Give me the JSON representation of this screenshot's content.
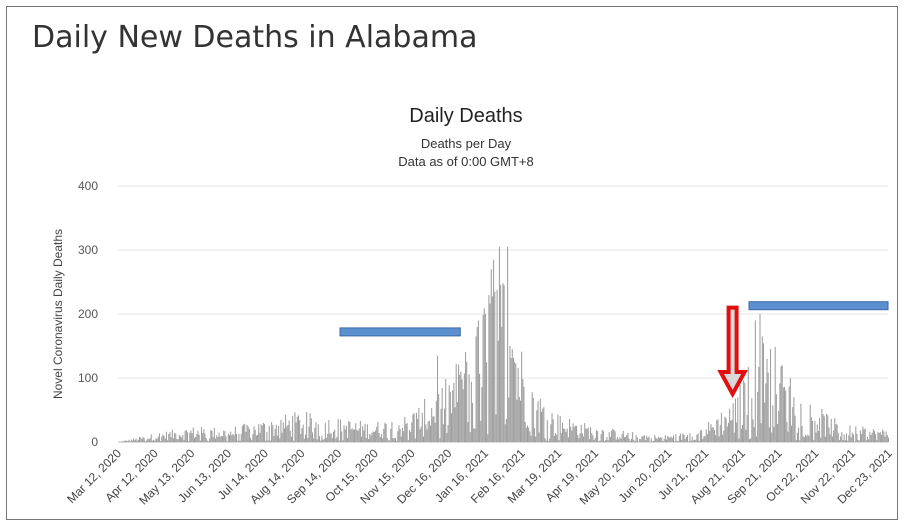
{
  "page": {
    "title": "Daily New Deaths in Alabama"
  },
  "chart_data": {
    "type": "bar",
    "title": "Daily Deaths",
    "subtitle_lines": [
      "Deaths per Day",
      "Data as of 0:00 GMT+8"
    ],
    "xlabel": "",
    "ylabel": "Novel Coronavirus Daily Deaths",
    "ylim": [
      0,
      400
    ],
    "y_ticks": [
      0,
      100,
      200,
      300,
      400
    ],
    "grid": true,
    "x_start": "2020-03-12",
    "x_end": "2021-12-31",
    "x_tick_labels": [
      "Mar 12, 2020",
      "Apr 12, 2020",
      "May 13, 2020",
      "Jun 13, 2020",
      "Jul 14, 2020",
      "Aug 14, 2020",
      "Sep 14, 2020",
      "Oct 15, 2020",
      "Nov 15, 2020",
      "Dec 16, 2020",
      "Jan 16, 2021",
      "Feb 16, 2021",
      "Mar 19, 2021",
      "Apr 19, 2021",
      "May 20, 2021",
      "Jun 20, 2021",
      "Jul 21, 2021",
      "Aug 21, 2021",
      "Sep 21, 2021",
      "Oct 22, 2021",
      "Nov 22, 2021",
      "Dec 23, 2021"
    ],
    "series": [
      {
        "color": "#9e9e9e",
        "shape_points": [
          [
            "2020-03-12",
            0
          ],
          [
            "2020-04-12",
            8
          ],
          [
            "2020-05-13",
            14
          ],
          [
            "2020-06-13",
            13
          ],
          [
            "2020-07-14",
            20
          ],
          [
            "2020-08-14",
            28
          ],
          [
            "2020-09-14",
            22
          ],
          [
            "2020-10-15",
            18
          ],
          [
            "2020-11-15",
            25
          ],
          [
            "2020-12-16",
            55
          ],
          [
            "2021-01-05",
            90
          ],
          [
            "2021-01-16",
            140
          ],
          [
            "2021-02-01",
            185
          ],
          [
            "2021-02-10",
            165
          ],
          [
            "2021-02-16",
            105
          ],
          [
            "2021-03-01",
            55
          ],
          [
            "2021-03-19",
            28
          ],
          [
            "2021-04-19",
            16
          ],
          [
            "2021-05-20",
            10
          ],
          [
            "2021-06-20",
            6
          ],
          [
            "2021-07-21",
            10
          ],
          [
            "2021-08-21",
            40
          ],
          [
            "2021-09-10",
            90
          ],
          [
            "2021-09-21",
            100
          ],
          [
            "2021-10-05",
            55
          ],
          [
            "2021-10-22",
            40
          ],
          [
            "2021-11-22",
            16
          ],
          [
            "2021-12-23",
            12
          ],
          [
            "2021-12-31",
            12
          ]
        ],
        "spikes": [
          [
            "2020-12-10",
            135
          ],
          [
            "2020-12-30",
            110
          ],
          [
            "2021-01-12",
            165
          ],
          [
            "2021-01-14",
            190
          ],
          [
            "2021-01-20",
            200
          ],
          [
            "2021-01-25",
            270
          ],
          [
            "2021-01-28",
            235
          ],
          [
            "2021-02-01",
            305
          ],
          [
            "2021-02-03",
            180
          ],
          [
            "2021-02-05",
            245
          ],
          [
            "2021-02-08",
            305
          ],
          [
            "2021-02-10",
            150
          ],
          [
            "2021-02-12",
            145
          ],
          [
            "2021-09-08",
            190
          ],
          [
            "2021-09-12",
            200
          ],
          [
            "2021-09-14",
            165
          ],
          [
            "2021-09-18",
            130
          ],
          [
            "2021-10-01",
            120
          ],
          [
            "2021-10-08",
            100
          ]
        ]
      }
    ],
    "annotations": [
      {
        "type": "horizontal-bar",
        "color": "#5b8fd0",
        "from": "2020-09-18",
        "to": "2020-12-30",
        "y": 172
      },
      {
        "type": "horizontal-bar",
        "color": "#5b8fd0",
        "from": "2021-09-03",
        "to": "2021-12-31",
        "y": 213
      },
      {
        "type": "down-arrow",
        "color": "#e01010",
        "fill": "#d9d9d9",
        "x": "2021-08-20",
        "y_top": 210,
        "y_bottom": 75
      }
    ]
  }
}
